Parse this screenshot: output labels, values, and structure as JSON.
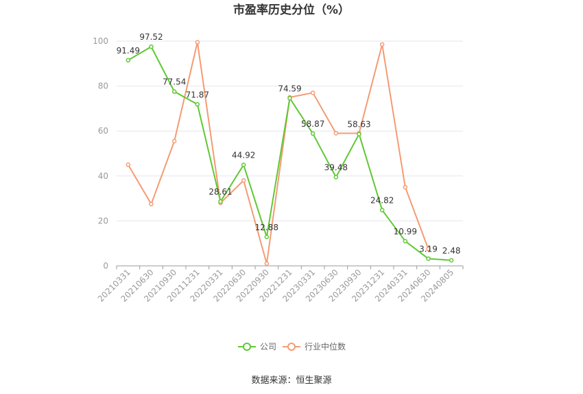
{
  "chart_data": {
    "type": "line",
    "title": "市盈率历史分位（%）",
    "categories": [
      "20210331",
      "20210630",
      "20210930",
      "20211231",
      "20220331",
      "20220630",
      "20220930",
      "20221231",
      "20230331",
      "20230630",
      "20230930",
      "20231231",
      "20240331",
      "20240630",
      "20240805"
    ],
    "series": [
      {
        "name": "公司",
        "color": "#5ec832",
        "values": [
          91.49,
          97.52,
          77.54,
          71.87,
          28.61,
          44.92,
          12.88,
          74.59,
          58.87,
          39.48,
          58.63,
          24.82,
          10.99,
          3.19,
          2.48
        ],
        "labels": [
          "91.49",
          "97.52",
          "77.54",
          "71.87",
          "28.61",
          "44.92",
          "12.88",
          "74.59",
          "58.87",
          "39.48",
          "58.63",
          "24.82",
          "10.99",
          "3.19",
          "2.48"
        ]
      },
      {
        "name": "行业中位数",
        "color": "#f59a72",
        "values": [
          45,
          27.5,
          55.5,
          99.5,
          28,
          38,
          1,
          75,
          77,
          59,
          59,
          98.5,
          35,
          7.5,
          null
        ]
      }
    ],
    "ylim": [
      0,
      100
    ],
    "yticks": [
      "0",
      "20",
      "40",
      "60",
      "80",
      "100"
    ],
    "grid": true,
    "legend": "bottom-center",
    "source": "数据来源：恒生聚源"
  }
}
